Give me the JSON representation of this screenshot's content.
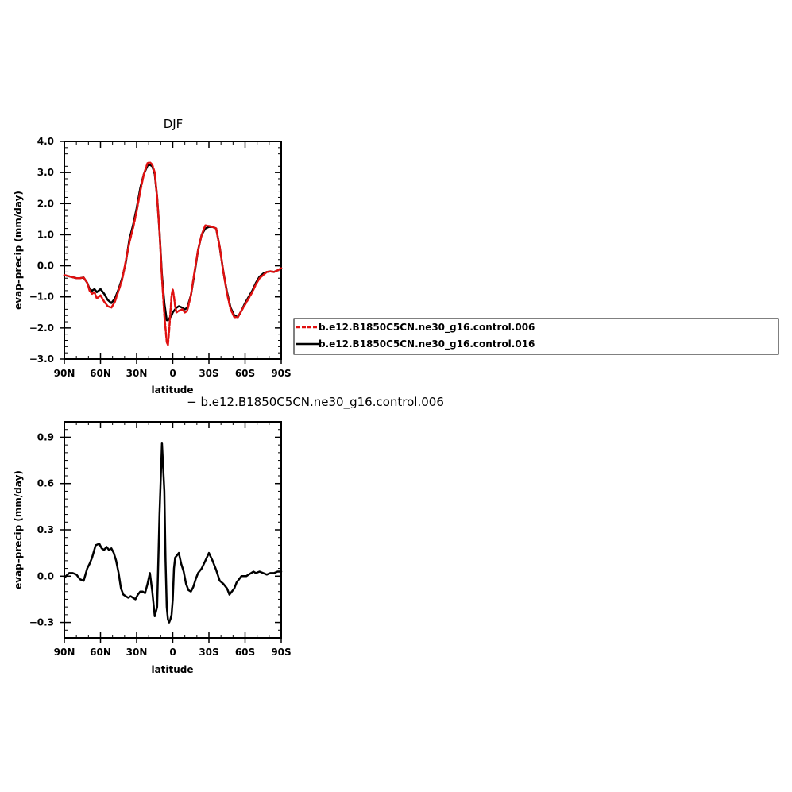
{
  "chart_data": [
    {
      "type": "line",
      "title": "DJF",
      "xlabel": "latitude",
      "ylabel": "evap–precip (mm/day)",
      "xlim": [
        -90,
        90
      ],
      "ylim": [
        -3,
        4
      ],
      "x_ticks": [
        {
          "value": -90,
          "label": "90N"
        },
        {
          "value": -60,
          "label": "60N"
        },
        {
          "value": -30,
          "label": "30N"
        },
        {
          "value": 0,
          "label": "0"
        },
        {
          "value": 30,
          "label": "30S"
        },
        {
          "value": 60,
          "label": "60S"
        },
        {
          "value": 90,
          "label": "90S"
        }
      ],
      "y_ticks": [
        {
          "value": 4,
          "label": "4.0"
        },
        {
          "value": 3,
          "label": "3.0"
        },
        {
          "value": 2,
          "label": "2.0"
        },
        {
          "value": 1,
          "label": "1.0"
        },
        {
          "value": 0,
          "label": "0.0"
        },
        {
          "value": -1,
          "label": "−1.0"
        },
        {
          "value": -2,
          "label": "−2.0"
        },
        {
          "value": -3,
          "label": "−3.0"
        }
      ],
      "legend_position": "right",
      "series": [
        {
          "name": "b.e12.B1850C5CN.ne30_g16.control.006",
          "color": "#e01010",
          "dashed": true,
          "x": [
            -90,
            -85,
            -80,
            -77,
            -74,
            -71,
            -69,
            -67,
            -65,
            -63,
            -60,
            -57,
            -54,
            -51,
            -48,
            -45,
            -42,
            -39,
            -36,
            -33,
            -30,
            -27,
            -24,
            -21,
            -19,
            -17,
            -15,
            -13,
            -11,
            -9,
            -7,
            -5,
            -4,
            -3,
            -2,
            -1,
            0,
            1,
            2,
            3,
            5,
            8,
            10,
            12,
            15,
            18,
            21,
            24,
            27,
            30,
            33,
            36,
            39,
            42,
            45,
            48,
            51,
            54,
            57,
            60,
            63,
            66,
            69,
            72,
            75,
            78,
            81,
            84,
            87,
            90
          ],
          "y": [
            -0.3,
            -0.35,
            -0.4,
            -0.4,
            -0.38,
            -0.55,
            -0.8,
            -0.9,
            -0.85,
            -1.05,
            -0.95,
            -1.15,
            -1.3,
            -1.35,
            -1.15,
            -0.8,
            -0.45,
            0.15,
            0.75,
            1.2,
            1.75,
            2.4,
            2.95,
            3.3,
            3.33,
            3.25,
            3.0,
            2.2,
            1.1,
            -0.4,
            -1.6,
            -2.45,
            -2.55,
            -2.1,
            -1.5,
            -0.95,
            -0.75,
            -1.0,
            -1.3,
            -1.5,
            -1.45,
            -1.4,
            -1.5,
            -1.45,
            -0.95,
            -0.2,
            0.5,
            1.0,
            1.3,
            1.28,
            1.25,
            1.2,
            0.6,
            -0.2,
            -0.9,
            -1.4,
            -1.65,
            -1.65,
            -1.45,
            -1.25,
            -1.05,
            -0.85,
            -0.6,
            -0.4,
            -0.3,
            -0.2,
            -0.18,
            -0.2,
            -0.15,
            -0.08
          ]
        },
        {
          "name": "b.e12.B1850C5CN.ne30_g16.control.016",
          "color": "#000000",
          "dashed": false,
          "x": [
            -90,
            -85,
            -80,
            -77,
            -74,
            -71,
            -69,
            -67,
            -65,
            -63,
            -60,
            -57,
            -54,
            -51,
            -48,
            -45,
            -42,
            -39,
            -36,
            -33,
            -30,
            -27,
            -24,
            -21,
            -19,
            -17,
            -15,
            -13,
            -11,
            -9,
            -7,
            -5,
            -4,
            -3,
            -2,
            -1,
            0,
            1,
            2,
            3,
            5,
            8,
            10,
            12,
            15,
            18,
            21,
            24,
            27,
            30,
            33,
            36,
            39,
            42,
            45,
            48,
            51,
            54,
            57,
            60,
            63,
            66,
            69,
            72,
            75,
            78,
            81,
            84,
            87,
            90
          ],
          "y": [
            -0.3,
            -0.35,
            -0.4,
            -0.4,
            -0.38,
            -0.55,
            -0.75,
            -0.8,
            -0.75,
            -0.85,
            -0.75,
            -0.9,
            -1.1,
            -1.2,
            -1.05,
            -0.75,
            -0.4,
            0.1,
            0.85,
            1.3,
            1.85,
            2.5,
            2.95,
            3.22,
            3.25,
            3.2,
            2.95,
            2.2,
            1.1,
            -0.3,
            -1.2,
            -1.75,
            -1.75,
            -1.7,
            -1.65,
            -1.6,
            -1.5,
            -1.45,
            -1.4,
            -1.35,
            -1.3,
            -1.35,
            -1.4,
            -1.35,
            -0.95,
            -0.25,
            0.5,
            1.0,
            1.2,
            1.25,
            1.25,
            1.2,
            0.6,
            -0.2,
            -0.85,
            -1.35,
            -1.6,
            -1.65,
            -1.45,
            -1.2,
            -1.0,
            -0.8,
            -0.55,
            -0.35,
            -0.25,
            -0.2,
            -0.18,
            -0.2,
            -0.15,
            -0.08
          ]
        }
      ]
    },
    {
      "type": "line",
      "title": "− b.e12.B1850C5CN.ne30_g16.control.006",
      "xlabel": "latitude",
      "ylabel": "evap–precip (mm/day)",
      "xlim": [
        -90,
        90
      ],
      "ylim": [
        -0.4,
        1.0
      ],
      "x_ticks": [
        {
          "value": -90,
          "label": "90N"
        },
        {
          "value": -60,
          "label": "60N"
        },
        {
          "value": -30,
          "label": "30N"
        },
        {
          "value": 0,
          "label": "0"
        },
        {
          "value": 30,
          "label": "30S"
        },
        {
          "value": 60,
          "label": "60S"
        },
        {
          "value": 90,
          "label": "90S"
        }
      ],
      "y_ticks": [
        {
          "value": 0.9,
          "label": "0.9"
        },
        {
          "value": 0.6,
          "label": "0.6"
        },
        {
          "value": 0.3,
          "label": "0.3"
        },
        {
          "value": 0.0,
          "label": "0.0"
        },
        {
          "value": -0.3,
          "label": "−0.3"
        }
      ],
      "series": [
        {
          "name": "",
          "color": "#000000",
          "dashed": false,
          "x": [
            -90,
            -86,
            -83,
            -80,
            -77,
            -74,
            -71,
            -69,
            -67,
            -64,
            -61,
            -59,
            -57,
            -55,
            -53,
            -51,
            -49,
            -47,
            -45,
            -43,
            -41,
            -39,
            -37,
            -35,
            -33,
            -31,
            -29,
            -27,
            -25,
            -23,
            -21,
            -19,
            -17,
            -15,
            -13,
            -11,
            -9,
            -7,
            -6,
            -5,
            -4,
            -3,
            -2,
            -1,
            0,
            1,
            2,
            3,
            5,
            7,
            9,
            11,
            13,
            15,
            17,
            19,
            21,
            24,
            27,
            30,
            33,
            36,
            39,
            42,
            45,
            47,
            49,
            51,
            53,
            55,
            57,
            59,
            61,
            63,
            65,
            67,
            69,
            72,
            75,
            78,
            81,
            84,
            87,
            90
          ],
          "y": [
            -0.01,
            0.02,
            0.02,
            0.01,
            -0.02,
            -0.03,
            0.05,
            0.08,
            0.12,
            0.2,
            0.21,
            0.18,
            0.17,
            0.19,
            0.17,
            0.18,
            0.15,
            0.1,
            0.02,
            -0.08,
            -0.12,
            -0.13,
            -0.14,
            -0.13,
            -0.14,
            -0.15,
            -0.12,
            -0.1,
            -0.1,
            -0.11,
            -0.05,
            0.02,
            -0.1,
            -0.26,
            -0.2,
            0.4,
            0.86,
            0.55,
            0.1,
            -0.2,
            -0.28,
            -0.3,
            -0.28,
            -0.25,
            -0.15,
            0.05,
            0.12,
            0.13,
            0.15,
            0.08,
            0.03,
            -0.05,
            -0.09,
            -0.1,
            -0.07,
            -0.02,
            0.02,
            0.05,
            0.1,
            0.15,
            0.1,
            0.04,
            -0.03,
            -0.05,
            -0.08,
            -0.12,
            -0.1,
            -0.08,
            -0.04,
            -0.02,
            0.0,
            0.0,
            0.0,
            0.01,
            0.02,
            0.03,
            0.02,
            0.03,
            0.02,
            0.01,
            0.02,
            0.02,
            0.03,
            0.03
          ]
        }
      ]
    }
  ]
}
